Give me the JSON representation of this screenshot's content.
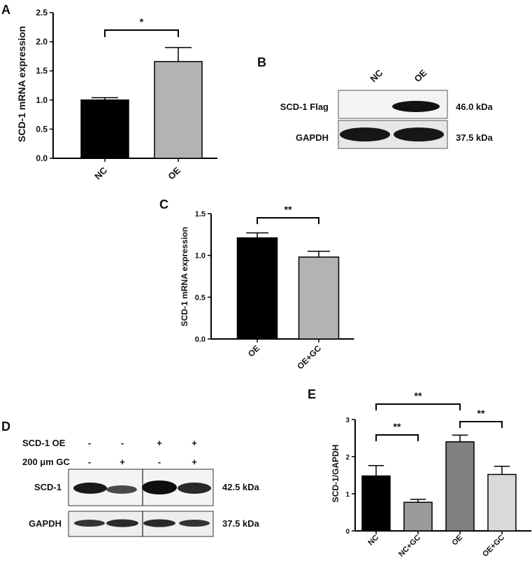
{
  "chart_data": [
    {
      "panel": "A",
      "type": "bar",
      "categories": [
        "NC",
        "OE"
      ],
      "values": [
        1.0,
        1.66
      ],
      "errors": [
        0.04,
        0.24
      ],
      "colors": [
        "#000000",
        "#b3b3b3"
      ],
      "ylabel": "SCD-1 mRNA expression",
      "ylim": [
        0,
        2.5
      ],
      "yticks": [
        "0.0",
        "0.5",
        "1.0",
        "1.5",
        "2.0",
        "2.5"
      ],
      "significance": [
        {
          "from": "NC",
          "to": "OE",
          "label": "*"
        }
      ]
    },
    {
      "panel": "C",
      "type": "bar",
      "categories": [
        "OE",
        "OE+GC"
      ],
      "values": [
        1.21,
        0.98
      ],
      "errors": [
        0.06,
        0.07
      ],
      "colors": [
        "#000000",
        "#b3b3b3"
      ],
      "ylabel": "SCD-1 mRNA expression",
      "ylim": [
        0,
        1.5
      ],
      "yticks": [
        "0.0",
        "0.5",
        "1.0",
        "1.5"
      ],
      "significance": [
        {
          "from": "OE",
          "to": "OE+GC",
          "label": "**"
        }
      ]
    },
    {
      "panel": "E",
      "type": "bar",
      "categories": [
        "NC",
        "NC+GC",
        "OE",
        "OE+GC"
      ],
      "values": [
        1.48,
        0.77,
        2.4,
        1.52
      ],
      "errors": [
        0.28,
        0.08,
        0.18,
        0.22
      ],
      "colors": [
        "#000000",
        "#9a9a9a",
        "#808080",
        "#d9d9d9"
      ],
      "ylabel": "SCD-1/GAPDH",
      "ylim": [
        0,
        3
      ],
      "yticks": [
        "0",
        "1",
        "2",
        "3"
      ],
      "significance": [
        {
          "from": "NC",
          "to": "NC+GC",
          "label": "**"
        },
        {
          "from": "NC",
          "to": "OE",
          "label": "**"
        },
        {
          "from": "OE",
          "to": "OE+GC",
          "label": "**"
        }
      ]
    }
  ],
  "western_b": {
    "panel": "B",
    "lanes": [
      "NC",
      "OE"
    ],
    "rows": [
      {
        "label": "SCD-1 Flag",
        "size": "46.0 kDa"
      },
      {
        "label": "GAPDH",
        "size": "37.5 kDa"
      }
    ]
  },
  "western_d": {
    "panel": "D",
    "conditions": [
      {
        "label": "SCD-1 OE",
        "marks": [
          "-",
          "-",
          "+",
          "+"
        ]
      },
      {
        "label": "200 μm GC",
        "marks": [
          "-",
          "+",
          "-",
          "+"
        ]
      }
    ],
    "rows": [
      {
        "label": "SCD-1",
        "size": "42.5 kDa"
      },
      {
        "label": "GAPDH",
        "size": "37.5 kDa"
      }
    ]
  }
}
